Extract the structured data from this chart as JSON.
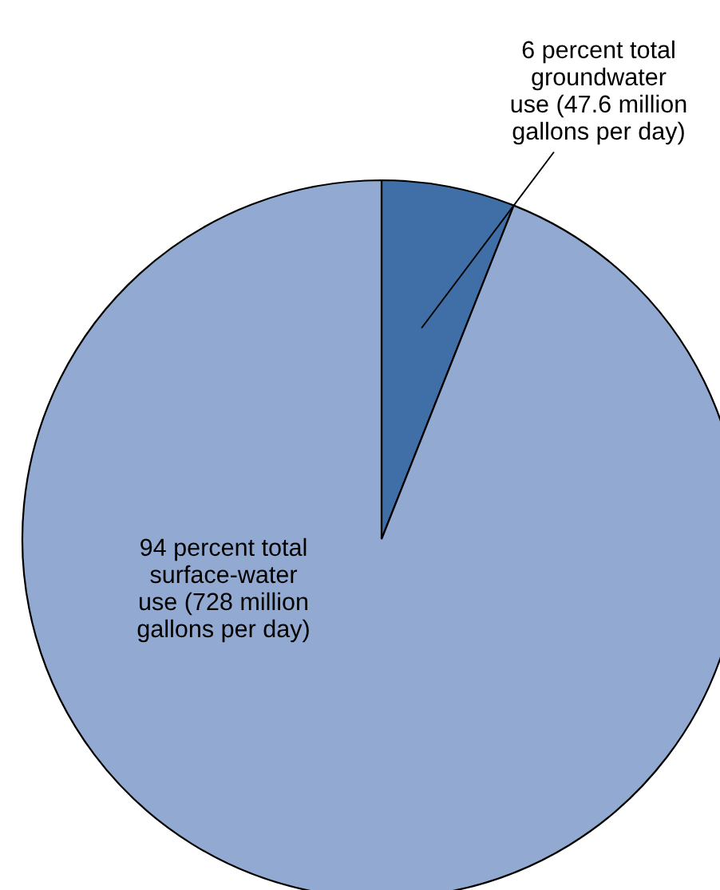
{
  "chart_data": {
    "type": "pie",
    "categories": [
      "6 percent total\ngroundwater\nuse (47.6 million\ngallons per day)",
      "94 percent total\nsurface-water\nuse (728 million\ngallons per day)"
    ],
    "values": [
      6,
      94
    ],
    "colors": [
      "#3f6fa6",
      "#92a9d1"
    ]
  }
}
